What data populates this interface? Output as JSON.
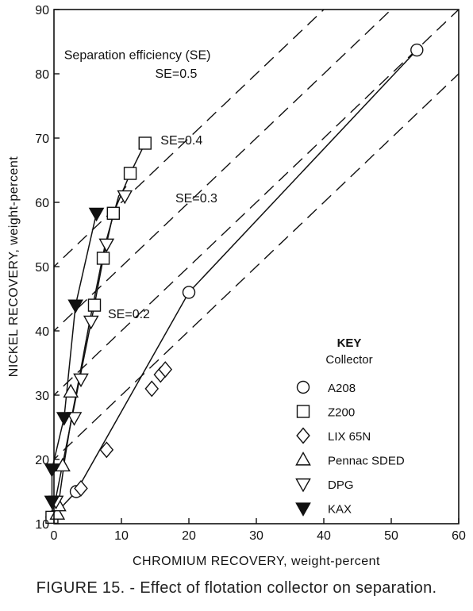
{
  "caption": "FIGURE 15. - Effect of flotation collector on separation.",
  "chart_data": {
    "type": "scatter",
    "xlabel": "CHROMIUM RECOVERY, weight-percent",
    "ylabel": "NICKEL RECOVERY, weight-percent",
    "xlim": [
      0,
      60
    ],
    "ylim": [
      10,
      90
    ],
    "xticks": [
      0,
      10,
      20,
      30,
      40,
      50,
      60
    ],
    "yticks": [
      10,
      20,
      30,
      40,
      50,
      60,
      70,
      80,
      90
    ],
    "grid": false,
    "legend_position": "lower-right",
    "legend_title": "KEY",
    "legend_subtitle": "Collector",
    "series": [
      {
        "name": "A208",
        "marker": "circle",
        "line": true,
        "points": [
          [
            -0.3,
            11
          ],
          [
            3.3,
            15
          ],
          [
            20,
            46
          ],
          [
            53.8,
            83.7
          ]
        ]
      },
      {
        "name": "Z200",
        "marker": "square",
        "line": true,
        "points": [
          [
            -0.3,
            11
          ],
          [
            6,
            44
          ],
          [
            7.3,
            51.3
          ],
          [
            8.8,
            58.3
          ],
          [
            11.3,
            64.5
          ],
          [
            13.5,
            69.2
          ]
        ]
      },
      {
        "name": "LIX 65N",
        "marker": "diamond",
        "line": false,
        "points": [
          [
            4,
            15.5
          ],
          [
            7.8,
            21.5
          ],
          [
            14.5,
            31
          ],
          [
            15.8,
            33.2
          ],
          [
            16.5,
            34
          ]
        ]
      },
      {
        "name": "Pennac SDED",
        "marker": "triangle-up",
        "line": false,
        "points": [
          [
            0.5,
            11.5
          ],
          [
            0.7,
            12.8
          ],
          [
            1.3,
            19
          ],
          [
            2.5,
            30.5
          ]
        ]
      },
      {
        "name": "DPG",
        "marker": "triangle-down",
        "line": false,
        "points": [
          [
            0.3,
            13.5
          ],
          [
            3,
            26.5
          ],
          [
            4,
            32.5
          ],
          [
            5.5,
            41.5
          ],
          [
            7.8,
            53.5
          ],
          [
            10.5,
            61
          ]
        ]
      },
      {
        "name": "KAX",
        "marker": "triangle-down-filled",
        "line": true,
        "points": [
          [
            -0.3,
            13.5
          ],
          [
            -0.3,
            18.5
          ],
          [
            1.5,
            26.5
          ],
          [
            3.2,
            44
          ],
          [
            6.3,
            58.3
          ]
        ]
      }
    ],
    "fit_lines": [
      {
        "name": "Pennac SDED / DPG trend",
        "points": [
          [
            0.3,
            11
          ],
          [
            0.8,
            14
          ],
          [
            1.6,
            20
          ],
          [
            2.6,
            26.5
          ],
          [
            3.8,
            33
          ],
          [
            5.3,
            41.5
          ],
          [
            7.6,
            53.5
          ],
          [
            9.6,
            61
          ],
          [
            10.7,
            62.5
          ]
        ]
      }
    ],
    "reference_lines": [
      {
        "label": "SE=0.5",
        "se": 0.5
      },
      {
        "label": "SE=0.4",
        "se": 0.4
      },
      {
        "label": "SE=0.3",
        "se": 0.3
      },
      {
        "label": "SE=0.2",
        "se": 0.2
      }
    ],
    "annotation_title": "Separation efficiency (SE)"
  }
}
